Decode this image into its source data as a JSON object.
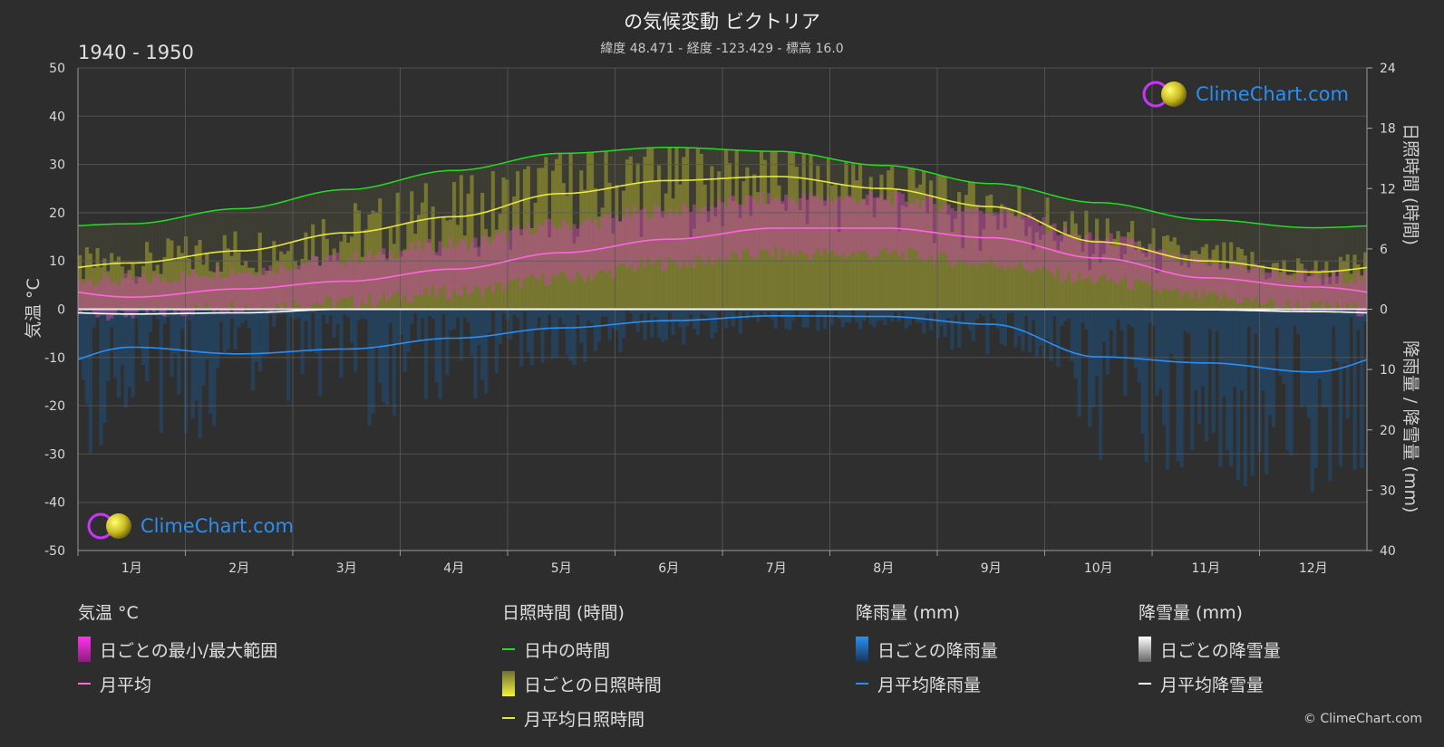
{
  "header": {
    "title": "の気候変動 ビクトリア",
    "subtitle": "緯度 48.471 - 経度 -123.429 - 標高 16.0",
    "period": "1940 - 1950"
  },
  "axes": {
    "left_label": "気温 °C",
    "right_top_label": "日照時間 (時間)",
    "right_bottom_label": "降雨量 / 降雪量 (mm)"
  },
  "logo": {
    "text": "ClimeChart.com"
  },
  "copyright": "© ClimeChart.com",
  "legend": {
    "temperature": {
      "title": "気温 °C",
      "range": "日ごとの最小/最大範囲",
      "avg": "月平均"
    },
    "sunshine": {
      "title": "日照時間 (時間)",
      "daylight": "日中の時間",
      "daily": "日ごとの日照時間",
      "avg": "月平均日照時間"
    },
    "rain": {
      "title": "降雨量 (mm)",
      "daily": "日ごとの降雨量",
      "avg": "月平均降雨量"
    },
    "snow": {
      "title": "降雪量 (mm)",
      "daily": "日ごとの降雪量",
      "avg": "月平均降雪量"
    }
  },
  "colors": {
    "background": "#2d2d2d",
    "grid": "#5a5a5a",
    "daylight": "#22dd22",
    "sunshine_avg": "#e8e83a",
    "sunshine_fill": "#8a8a30",
    "temp_avg": "#ff66dd",
    "temp_fill": "#c04aa0",
    "rain": "#2a8ff5",
    "rain_fill": "#1f4f7a",
    "snow": "#ffffff"
  },
  "chart_data": {
    "type": "line",
    "x_ticks": [
      "1月",
      "2月",
      "3月",
      "4月",
      "5月",
      "6月",
      "7月",
      "8月",
      "9月",
      "10月",
      "11月",
      "12月"
    ],
    "temp_axis": {
      "ticks": [
        "50",
        "40",
        "30",
        "20",
        "10",
        "0",
        "-10",
        "-20",
        "-30",
        "-40",
        "-50"
      ],
      "ylim": [
        -50,
        50
      ]
    },
    "sunshine_axis": {
      "ticks": [
        "24",
        "18",
        "12",
        "6",
        "0"
      ],
      "ylim": [
        0,
        24
      ]
    },
    "precip_axis": {
      "ticks": [
        "0",
        "10",
        "20",
        "30",
        "40"
      ],
      "ylim": [
        0,
        40
      ]
    },
    "series": [
      {
        "name": "日中の時間",
        "axis": "sunshine",
        "values": [
          8.5,
          10.0,
          11.9,
          13.8,
          15.5,
          16.1,
          15.7,
          14.3,
          12.5,
          10.6,
          8.9,
          8.1
        ]
      },
      {
        "name": "月平均日照時間",
        "axis": "sunshine",
        "values": [
          4.6,
          5.8,
          7.6,
          9.2,
          11.5,
          12.8,
          13.2,
          12.0,
          10.2,
          6.7,
          4.8,
          3.7
        ]
      },
      {
        "name": "月平均",
        "axis": "temp",
        "values": [
          2.5,
          4.2,
          5.8,
          8.3,
          11.7,
          14.5,
          16.8,
          16.8,
          14.8,
          10.6,
          6.5,
          4.6
        ]
      },
      {
        "name": "月平均降雨量",
        "axis": "precip",
        "values": [
          6.3,
          7.4,
          6.6,
          4.8,
          3.1,
          1.9,
          1.1,
          1.2,
          2.5,
          7.9,
          8.9,
          10.4
        ]
      },
      {
        "name": "月平均降雪量",
        "axis": "precip",
        "values": [
          0.8,
          0.6,
          0.0,
          0.0,
          0.0,
          0.0,
          0.0,
          0.0,
          0.0,
          0.0,
          0.1,
          0.4
        ]
      }
    ],
    "temp_range": {
      "min": [
        -1.0,
        0.5,
        1.5,
        3.5,
        6.5,
        9.5,
        11.5,
        11.5,
        9.5,
        6.0,
        2.5,
        0.5
      ],
      "max": [
        6.0,
        8.0,
        10.5,
        13.5,
        17.5,
        20.5,
        23.0,
        23.0,
        20.5,
        14.5,
        9.5,
        7.0
      ]
    }
  }
}
